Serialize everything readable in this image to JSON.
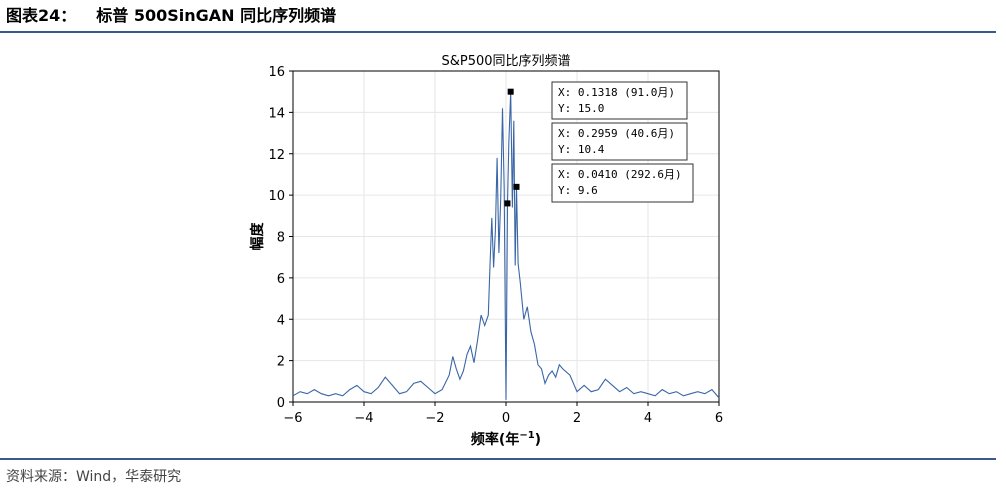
{
  "header": {
    "figure_label": "图表24：",
    "figure_title": "标普 500SinGAN 同比序列频谱"
  },
  "source": "资料来源：Wind，华泰研究",
  "colors": {
    "line": "#3a66a7",
    "rule": "#3a5a8c",
    "grid": "#e6e6e6",
    "marker": "#000000"
  },
  "chart_data": {
    "type": "line",
    "title": "S&P500同比序列频谱",
    "xlabel": "频率(年",
    "xlabel_sup": "−1",
    "xlabel_close": ")",
    "ylabel": "幅度",
    "xlim": [
      -6,
      6
    ],
    "ylim": [
      0,
      16
    ],
    "grid": true,
    "xticks": [
      -6,
      -4,
      -2,
      0,
      2,
      4,
      6
    ],
    "xtick_labels": [
      "−6",
      "−4",
      "−2",
      "0",
      "2",
      "4",
      "6"
    ],
    "yticks": [
      0,
      2,
      4,
      6,
      8,
      10,
      12,
      14,
      16
    ],
    "ytick_labels": [
      "0",
      "2",
      "4",
      "6",
      "8",
      "10",
      "12",
      "14",
      "16"
    ],
    "series": [
      {
        "x": [
          -6.0,
          -5.8,
          -5.6,
          -5.4,
          -5.2,
          -5.0,
          -4.8,
          -4.6,
          -4.4,
          -4.2,
          -4.0,
          -3.8,
          -3.6,
          -3.4,
          -3.2,
          -3.0,
          -2.8,
          -2.6,
          -2.4,
          -2.2,
          -2.0,
          -1.8,
          -1.6,
          -1.5,
          -1.4,
          -1.3,
          -1.2,
          -1.1,
          -1.0,
          -0.9,
          -0.8,
          -0.7,
          -0.6,
          -0.5,
          -0.45,
          -0.4,
          -0.35,
          -0.3,
          -0.25,
          -0.2,
          -0.15,
          -0.1,
          -0.05,
          0.0,
          0.041,
          0.08,
          0.132,
          0.18,
          0.22,
          0.26,
          0.296,
          0.34,
          0.4,
          0.5,
          0.6,
          0.7,
          0.8,
          0.9,
          1.0,
          1.1,
          1.2,
          1.3,
          1.4,
          1.5,
          1.6,
          1.8,
          2.0,
          2.2,
          2.4,
          2.6,
          2.8,
          3.0,
          3.2,
          3.4,
          3.6,
          3.8,
          4.0,
          4.2,
          4.4,
          4.6,
          4.8,
          5.0,
          5.2,
          5.4,
          5.6,
          5.8,
          6.0
        ],
        "y": [
          0.3,
          0.5,
          0.4,
          0.6,
          0.4,
          0.3,
          0.4,
          0.3,
          0.6,
          0.8,
          0.5,
          0.4,
          0.7,
          1.2,
          0.8,
          0.4,
          0.5,
          0.9,
          1.0,
          0.7,
          0.4,
          0.6,
          1.3,
          2.2,
          1.6,
          1.1,
          1.5,
          2.3,
          2.7,
          1.9,
          3.0,
          4.2,
          3.7,
          4.2,
          6.6,
          8.9,
          6.5,
          8.3,
          11.8,
          7.2,
          9.8,
          14.2,
          10.3,
          0.1,
          9.6,
          12.5,
          15.0,
          9.4,
          13.6,
          6.6,
          10.4,
          6.7,
          5.8,
          4.0,
          4.6,
          3.4,
          2.8,
          1.8,
          1.6,
          0.9,
          1.3,
          1.5,
          1.2,
          1.8,
          1.6,
          1.3,
          0.5,
          0.8,
          0.5,
          0.6,
          1.1,
          0.8,
          0.5,
          0.7,
          0.4,
          0.5,
          0.4,
          0.3,
          0.6,
          0.4,
          0.5,
          0.3,
          0.4,
          0.5,
          0.4,
          0.6,
          0.2
        ]
      }
    ],
    "markers": [
      {
        "x": 0.1318,
        "y": 15.0
      },
      {
        "x": 0.2959,
        "y": 10.4
      },
      {
        "x": 0.041,
        "y": 9.6
      }
    ],
    "annotations": [
      {
        "line1": "X: 0.1318 (91.0月)",
        "line2": "Y: 15.0"
      },
      {
        "line1": "X: 0.2959 (40.6月)",
        "line2": "Y: 10.4"
      },
      {
        "line1": "X: 0.0410 (292.6月)",
        "line2": "Y: 9.6"
      }
    ]
  }
}
